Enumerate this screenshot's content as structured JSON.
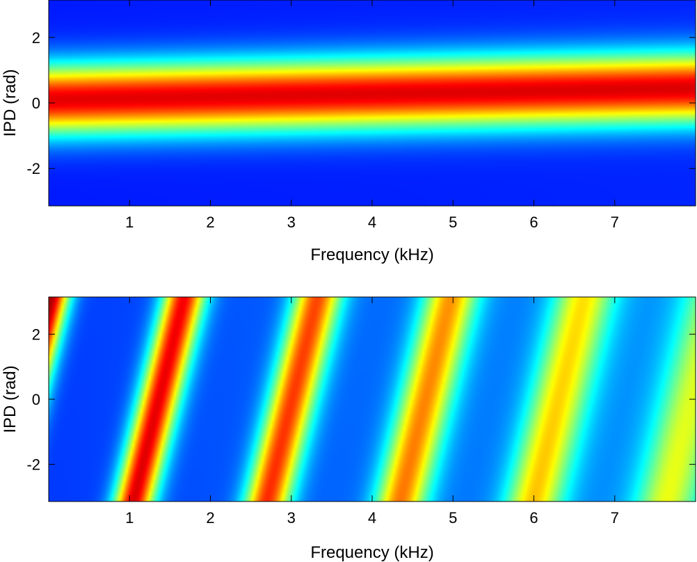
{
  "chart_data": [
    {
      "type": "heatmap",
      "xlabel": "Frequency (kHz)",
      "ylabel": "IPD (rad)",
      "xlim": [
        0,
        8
      ],
      "ylim": [
        -3.1416,
        3.1416
      ],
      "xticks": [
        1,
        2,
        3,
        4,
        5,
        6,
        7
      ],
      "xtick_labels": [
        "1",
        "2",
        "3",
        "4",
        "5",
        "6",
        "7"
      ],
      "yticks": [
        -2,
        0,
        2
      ],
      "ytick_labels": [
        "-2",
        "0",
        "2"
      ],
      "colormap": "jet",
      "pattern": "single-band",
      "band_center_rad_at_xlim": [
        0.1,
        0.45
      ],
      "band_width_rad": 0.75
    },
    {
      "type": "heatmap",
      "xlabel": "Frequency (kHz)",
      "ylabel": "IPD (rad)",
      "xlim": [
        0,
        8
      ],
      "ylim": [
        -3.1416,
        3.1416
      ],
      "xticks": [
        1,
        2,
        3,
        4,
        5,
        6,
        7
      ],
      "xtick_labels": [
        "1",
        "2",
        "3",
        "4",
        "5",
        "6",
        "7"
      ],
      "yticks": [
        -2,
        0,
        2
      ],
      "ytick_labels": [
        "-2",
        "0",
        "2"
      ],
      "colormap": "jet",
      "pattern": "wrapped-diagonal-bands",
      "band_crossings_at_ipd_minus_pi_khz": [
        -0.6,
        0.8,
        2.4,
        4.0,
        5.7,
        7.4
      ],
      "band_period_khz": 1.65,
      "band_slope_khz_per_rad": 0.1
    }
  ]
}
